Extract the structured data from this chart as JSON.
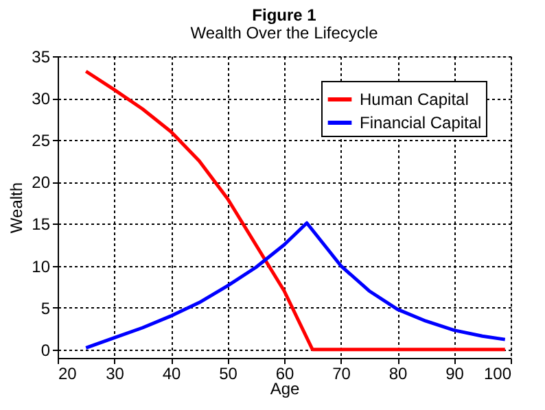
{
  "chart_data": {
    "type": "line",
    "title": "Figure 1",
    "subtitle": "Wealth Over the Lifecycle",
    "xlabel": "Age",
    "ylabel": "Wealth",
    "xlim": [
      20,
      100
    ],
    "xticks": [
      20,
      30,
      40,
      50,
      60,
      70,
      80,
      90,
      100
    ],
    "ylim": [
      -1,
      35
    ],
    "yticks": [
      0,
      5,
      10,
      15,
      20,
      25,
      30,
      35
    ],
    "grid": true,
    "legend": "top right",
    "line_style": "solid",
    "marker": "none",
    "series": [
      {
        "name": "Human Capital",
        "color": "#ff0000",
        "x": [
          25,
          30,
          35,
          40,
          45,
          50,
          55,
          60,
          65,
          99
        ],
        "values": [
          33.2,
          31,
          28.7,
          26,
          22.5,
          18,
          12.5,
          7,
          0,
          0
        ]
      },
      {
        "name": "Financial Capital",
        "color": "#0000ff",
        "x": [
          25,
          30,
          35,
          40,
          45,
          50,
          55,
          60,
          64,
          70,
          75,
          80,
          85,
          90,
          95,
          99
        ],
        "values": [
          0.2,
          1.4,
          2.6,
          4,
          5.6,
          7.6,
          9.8,
          12.5,
          15.1,
          10,
          7,
          4.8,
          3.4,
          2.3,
          1.6,
          1.2
        ]
      }
    ]
  }
}
